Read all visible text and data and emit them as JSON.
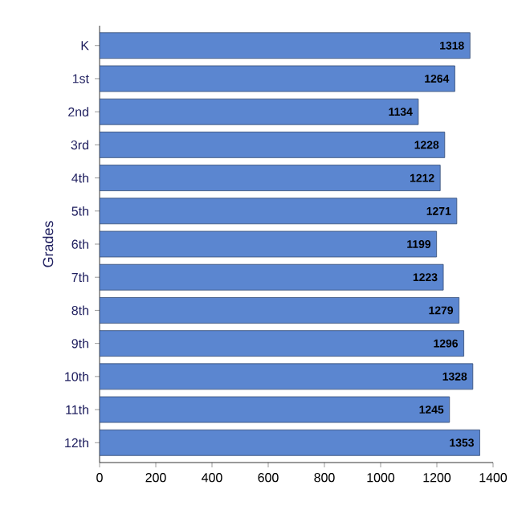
{
  "chart_data": {
    "type": "bar",
    "orientation": "horizontal",
    "ylabel": "Grades",
    "categories": [
      "K",
      "1st",
      "2nd",
      "3rd",
      "4th",
      "5th",
      "6th",
      "7th",
      "8th",
      "9th",
      "10th",
      "11th",
      "12th"
    ],
    "values": [
      1318,
      1264,
      1134,
      1228,
      1212,
      1271,
      1199,
      1223,
      1279,
      1296,
      1328,
      1245,
      1353
    ],
    "color": "#5b86d0",
    "data_labels": true,
    "xlim": [
      0,
      1400
    ],
    "xticks": [
      0,
      200,
      400,
      600,
      800,
      1000,
      1200,
      1400
    ]
  }
}
